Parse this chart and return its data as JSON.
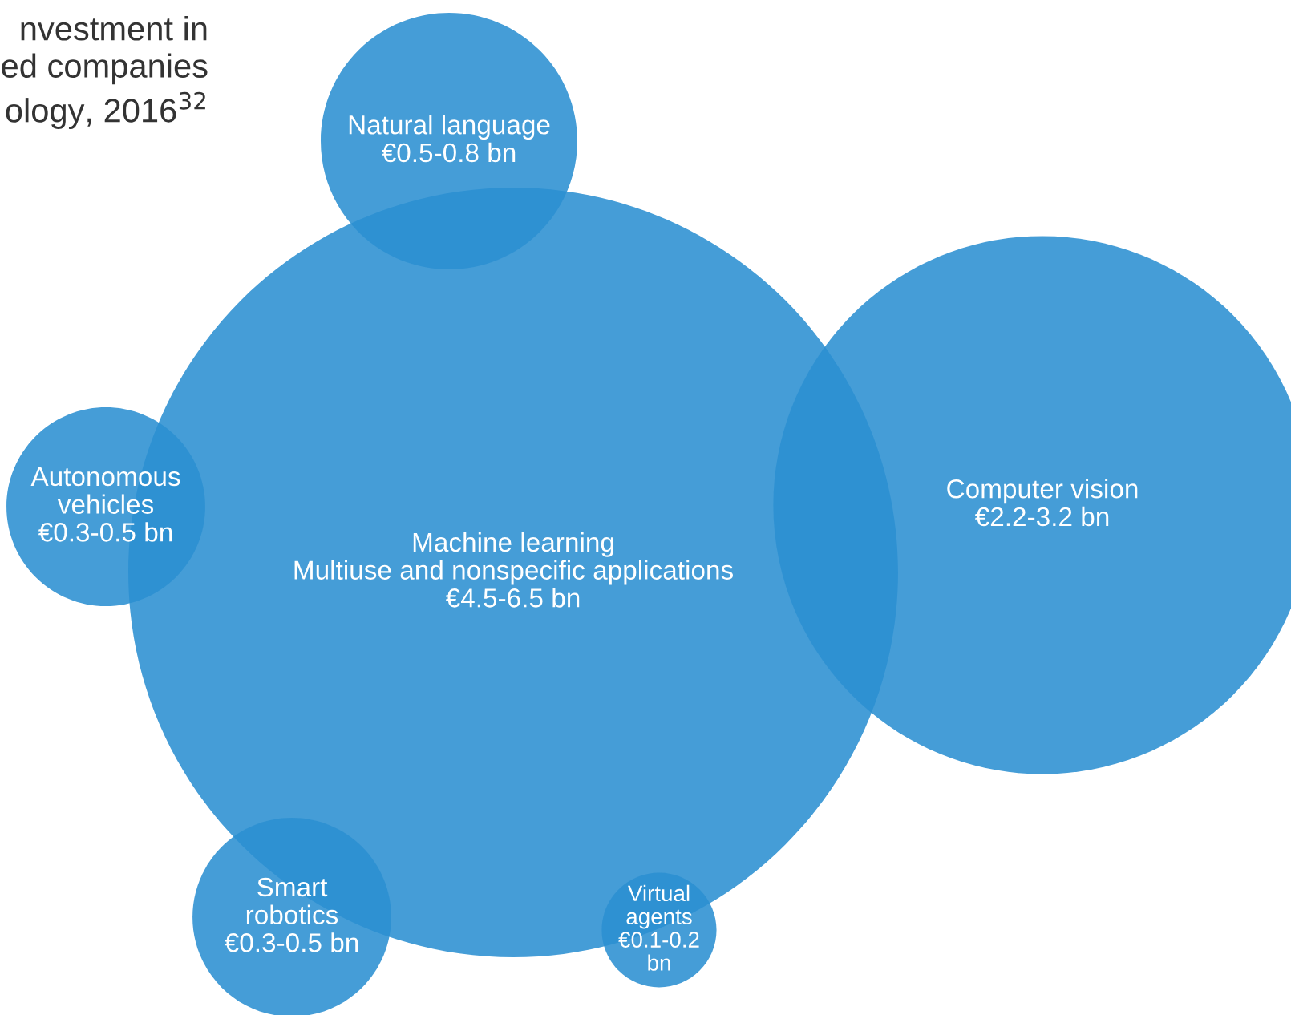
{
  "chart_data": {
    "type": "other",
    "values": [
      4.5,
      2.2,
      0.5,
      0.3,
      0.3,
      0.1
    ],
    "title": "nvestment in\ned companies\nology, 2016$^{32}$",
    "categories": [
      "Machine learning\nMultiuse and nonspecific applications",
      "Computer vision",
      "Natural language",
      "Autonomous\nvehicles",
      "Smart\nrobotics",
      "Virtual\nagents"
    ],
    "value_labels": [
      "€4.5-6.5 bn",
      "€2.2-3.2 bn",
      "€0.5-0.8 bn",
      "€0.3-0.5 bn",
      "€0.3-0.5 bn",
      "€0.1-0.2\nbn"
    ],
    "color": "#2b8fd1"
  }
}
